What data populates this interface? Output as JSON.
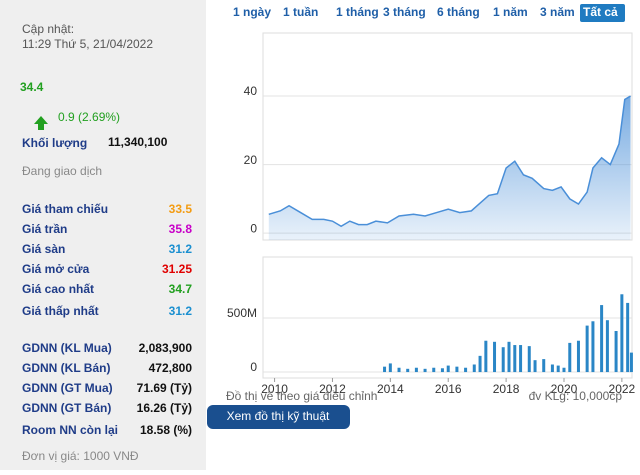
{
  "panel": {
    "updated_label": "Cập nhật:",
    "updated_time": "11:29 Thứ 5, 21/04/2022",
    "price": "34.4",
    "change": "0.9 (2.69%)",
    "volume_label": "Khối lượng",
    "volume": "11,340,100",
    "status": "Đang giao dịch",
    "stats": [
      {
        "label": "Giá tham chiếu",
        "value": "33.5",
        "color": "#f39c12"
      },
      {
        "label": "Giá trần",
        "value": "35.8",
        "color": "#c800c8"
      },
      {
        "label": "Giá sàn",
        "value": "31.2",
        "color": "#1a8fd0"
      },
      {
        "label": "Giá mở cửa",
        "value": "31.25",
        "color": "#e00000"
      },
      {
        "label": "Giá cao nhất",
        "value": "34.7",
        "color": "#22a020"
      },
      {
        "label": "Giá thấp nhất",
        "value": "31.2",
        "color": "#1a8fd0"
      }
    ],
    "foreign": [
      {
        "label": "GDNN (KL Mua)",
        "value": "2,083,900"
      },
      {
        "label": "GDNN (KL Bán)",
        "value": "472,800"
      },
      {
        "label": "GDNN (GT Mua)",
        "value": "71.69 (Tỷ)"
      },
      {
        "label": "GDNN (GT Bán)",
        "value": "16.26 (Tỷ)"
      },
      {
        "label": "Room NN còn lại",
        "value": "18.58 (%)"
      }
    ],
    "unit_note": "Đơn vị giá: 1000 VNĐ"
  },
  "range_buttons": {
    "items": [
      "1 ngày",
      "1 tuần",
      "1 tháng",
      "3 tháng",
      "6 tháng",
      "1 năm",
      "3 năm",
      "Tất cả"
    ],
    "active": 7
  },
  "chart_data": [
    {
      "type": "area",
      "color": "#4a8fd8",
      "x": [
        2009.8,
        2010.2,
        2010.5,
        2010.9,
        2011.3,
        2011.7,
        2012.0,
        2012.3,
        2012.6,
        2012.9,
        2013.2,
        2013.5,
        2013.9,
        2014.3,
        2014.8,
        2015.2,
        2015.6,
        2016.0,
        2016.4,
        2016.8,
        2017.0,
        2017.4,
        2017.7,
        2018.0,
        2018.3,
        2018.6,
        2018.9,
        2019.3,
        2019.6,
        2019.9,
        2020.2,
        2020.5,
        2020.8,
        2021.0,
        2021.3,
        2021.6,
        2021.9,
        2022.1,
        2022.3
      ],
      "values": [
        5.5,
        6.5,
        8,
        6,
        4,
        4,
        3.5,
        2,
        3.5,
        2.5,
        2.5,
        3.5,
        3,
        5,
        5.5,
        5,
        6,
        7,
        6,
        6.5,
        8,
        11,
        11.5,
        19,
        21,
        17,
        16,
        13,
        12.5,
        13.5,
        10,
        8.5,
        12,
        19,
        22,
        20,
        26,
        39,
        40
      ],
      "xlim": [
        2009.6,
        2022.35
      ],
      "ylim": [
        -2,
        58.4
      ],
      "yticks": [
        0,
        20,
        40
      ],
      "grid": true
    },
    {
      "type": "bar",
      "color": "#2a86c6",
      "x": [
        2013.8,
        2014.0,
        2014.3,
        2014.6,
        2014.9,
        2015.2,
        2015.5,
        2015.8,
        2016.0,
        2016.3,
        2016.6,
        2016.9,
        2017.1,
        2017.3,
        2017.6,
        2017.9,
        2018.1,
        2018.3,
        2018.5,
        2018.8,
        2019.0,
        2019.3,
        2019.6,
        2019.8,
        2020.0,
        2020.2,
        2020.5,
        2020.8,
        2021.0,
        2021.3,
        2021.5,
        2021.8,
        2022.0,
        2022.2,
        2022.33
      ],
      "values": [
        50000000,
        80000000,
        40000000,
        30000000,
        40000000,
        30000000,
        40000000,
        35000000,
        60000000,
        50000000,
        40000000,
        70000000,
        150000000,
        290000000,
        280000000,
        230000000,
        280000000,
        250000000,
        250000000,
        240000000,
        110000000,
        120000000,
        70000000,
        60000000,
        40000000,
        270000000,
        290000000,
        430000000,
        470000000,
        620000000,
        480000000,
        380000000,
        720000000,
        640000000,
        180000000
      ],
      "xlim": [
        2009.6,
        2022.35
      ],
      "ylim": [
        -55000000,
        1065000000
      ],
      "yticks": [
        0,
        {
          "value": 500000000,
          "label": "500M"
        }
      ],
      "xticks": [
        2010,
        2012,
        2014,
        2016,
        2018,
        2020,
        2022
      ],
      "grid": true
    }
  ],
  "notes": {
    "left": "Đồ thị vẽ theo giá điều chỉnh",
    "right": "đv KLg: 10,000cp"
  },
  "button": "Xem đồ thị kỹ thuật"
}
